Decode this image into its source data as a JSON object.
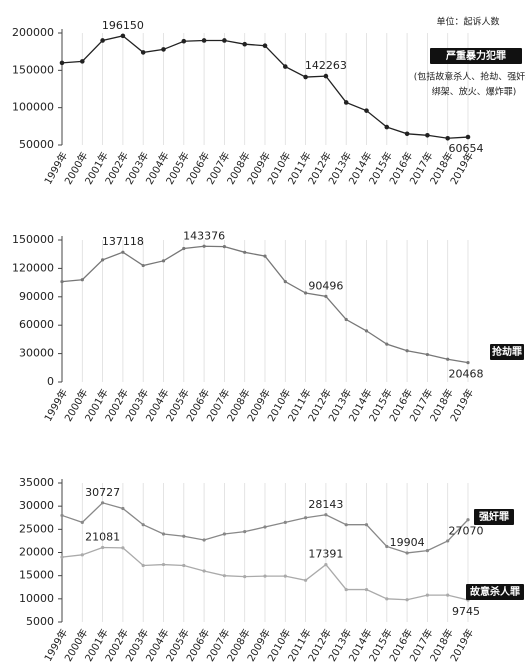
{
  "chart_data": [
    {
      "type": "line",
      "unit": "单位：起诉人数",
      "note": [
        "(包括故意杀人、抢劫、强奸、",
        "绑架、放火、爆炸罪)"
      ],
      "categories": [
        "1999年",
        "2000年",
        "2001年",
        "2002年",
        "2003年",
        "2004年",
        "2005年",
        "2006年",
        "2007年",
        "2008年",
        "2009年",
        "2010年",
        "2011年",
        "2012年",
        "2013年",
        "2014年",
        "2015年",
        "2016年",
        "2017年",
        "2018年",
        "2019年"
      ],
      "ylim": [
        50000,
        200000
      ],
      "yticks": [
        50000,
        100000,
        150000,
        200000
      ],
      "series": [
        {
          "name": "严重暴力犯罪",
          "color": "#222222",
          "values": [
            160000,
            162000,
            190000,
            196150,
            174000,
            178000,
            189000,
            190000,
            190000,
            185000,
            183000,
            155000,
            141000,
            142263,
            107000,
            96000,
            74000,
            65000,
            63000,
            59000,
            60654
          ],
          "point_labels": [
            3,
            13,
            20
          ]
        }
      ]
    },
    {
      "type": "line",
      "categories": [
        "1999年",
        "2000年",
        "2001年",
        "2002年",
        "2003年",
        "2004年",
        "2005年",
        "2006年",
        "2007年",
        "2008年",
        "2009年",
        "2010年",
        "2011年",
        "2012年",
        "2013年",
        "2014年",
        "2015年",
        "2016年",
        "2017年",
        "2018年",
        "2019年"
      ],
      "ylim": [
        0,
        150000
      ],
      "yticks": [
        0,
        30000,
        60000,
        90000,
        120000,
        150000
      ],
      "series": [
        {
          "name": "抢劫罪",
          "color": "#777777",
          "values": [
            106000,
            108000,
            129000,
            137118,
            123000,
            128000,
            141000,
            143376,
            143000,
            137000,
            133000,
            106000,
            94000,
            90496,
            66000,
            54000,
            40000,
            33000,
            29000,
            24000,
            20468
          ],
          "point_labels": [
            3,
            7,
            13,
            20
          ]
        }
      ]
    },
    {
      "type": "line",
      "categories": [
        "1999年",
        "2000年",
        "2001年",
        "2002年",
        "2003年",
        "2004年",
        "2005年",
        "2006年",
        "2007年",
        "2008年",
        "2009年",
        "2010年",
        "2011年",
        "2012年",
        "2013年",
        "2014年",
        "2015年",
        "2016年",
        "2017年",
        "2018年",
        "2019年"
      ],
      "ylim": [
        5000,
        35000
      ],
      "yticks": [
        5000,
        10000,
        15000,
        20000,
        25000,
        30000,
        35000
      ],
      "series": [
        {
          "name": "强奸罪",
          "color": "#888888",
          "values": [
            28000,
            26500,
            30727,
            29500,
            26000,
            24000,
            23500,
            22700,
            24000,
            24500,
            25500,
            26500,
            27500,
            28143,
            26000,
            26000,
            21300,
            19904,
            20400,
            22500,
            27070
          ],
          "point_labels": [
            2,
            13,
            17,
            20
          ]
        },
        {
          "name": "故意杀人罪",
          "color": "#aaaaaa",
          "values": [
            19000,
            19500,
            21081,
            21000,
            17200,
            17400,
            17200,
            16000,
            15000,
            14800,
            14900,
            14900,
            14000,
            17391,
            12000,
            12000,
            10000,
            9800,
            10800,
            10800,
            9745
          ],
          "point_labels": [
            2,
            13,
            20
          ]
        }
      ]
    }
  ]
}
